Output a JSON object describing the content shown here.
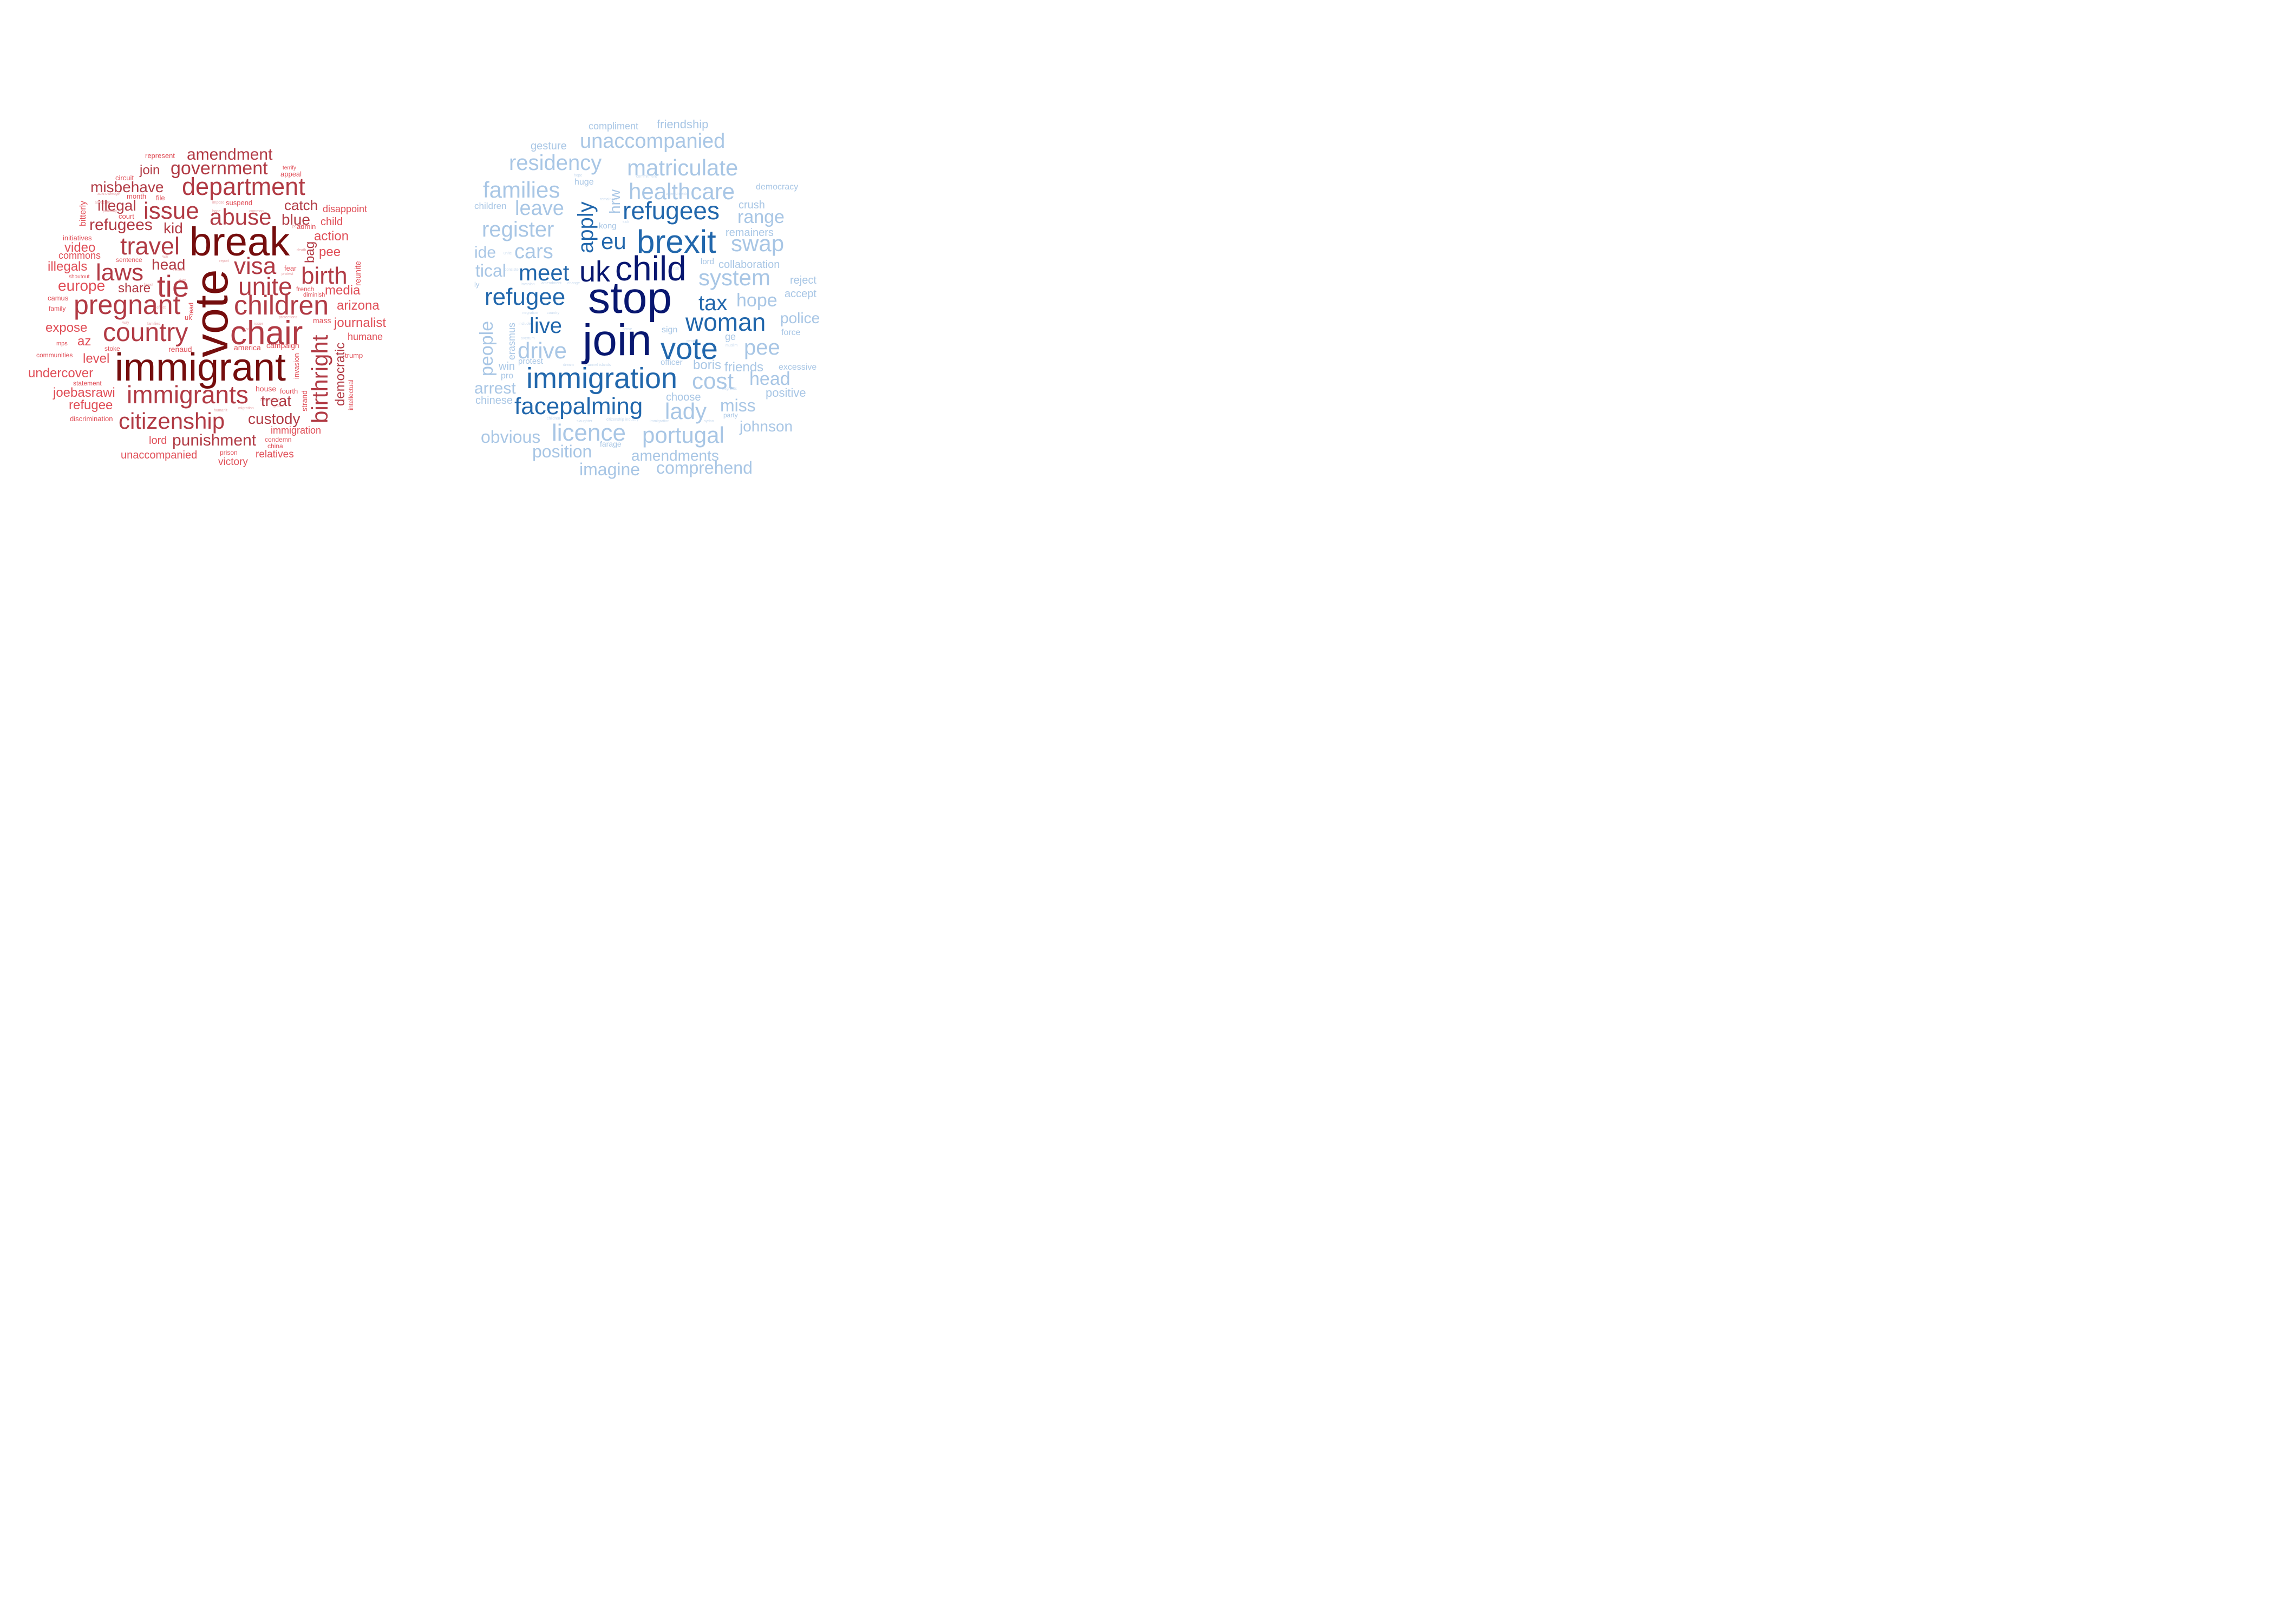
{
  "colors": {
    "red_dark": "#750d0d",
    "red_mid": "#b13a44",
    "red_light": "#e04e57",
    "blue_dark": "#081770",
    "blue_mid": "#2167ac",
    "blue_light": "#a8c6e5"
  },
  "clouds": [
    {
      "name": "red-word-cloud",
      "words": [
        {
          "text": "immigrant",
          "tone": "dark"
        },
        {
          "text": "vote",
          "tone": "dark"
        },
        {
          "text": "break",
          "tone": "dark"
        },
        {
          "text": "chair",
          "tone": "mid"
        },
        {
          "text": "children",
          "tone": "mid"
        },
        {
          "text": "tie",
          "tone": "mid"
        },
        {
          "text": "pregnant",
          "tone": "mid"
        },
        {
          "text": "department",
          "tone": "mid"
        },
        {
          "text": "country",
          "tone": "mid"
        },
        {
          "text": "immigrants",
          "tone": "mid"
        },
        {
          "text": "citizenship",
          "tone": "mid"
        },
        {
          "text": "unite",
          "tone": "mid"
        },
        {
          "text": "visa",
          "tone": "mid"
        },
        {
          "text": "abuse",
          "tone": "mid"
        },
        {
          "text": "travel",
          "tone": "mid"
        },
        {
          "text": "birth",
          "tone": "mid"
        },
        {
          "text": "birthright",
          "tone": "mid"
        },
        {
          "text": "laws",
          "tone": "mid"
        },
        {
          "text": "issue",
          "tone": "mid"
        },
        {
          "text": "government",
          "tone": "mid"
        },
        {
          "text": "amendment",
          "tone": "mid"
        },
        {
          "text": "custody",
          "tone": "mid"
        },
        {
          "text": "treat",
          "tone": "mid"
        },
        {
          "text": "punishment",
          "tone": "mid"
        },
        {
          "text": "refugees",
          "tone": "mid"
        },
        {
          "text": "misbehave",
          "tone": "mid"
        },
        {
          "text": "head",
          "tone": "mid"
        },
        {
          "text": "blue",
          "tone": "mid"
        },
        {
          "text": "illegal",
          "tone": "mid"
        },
        {
          "text": "kid",
          "tone": "mid"
        },
        {
          "text": "share",
          "tone": "mid"
        },
        {
          "text": "catch",
          "tone": "mid"
        },
        {
          "text": "join",
          "tone": "mid"
        },
        {
          "text": "bag",
          "tone": "mid"
        },
        {
          "text": "democratic",
          "tone": "mid"
        },
        {
          "text": "europe",
          "tone": "light"
        },
        {
          "text": "illegals",
          "tone": "light"
        },
        {
          "text": "video",
          "tone": "light"
        },
        {
          "text": "commons",
          "tone": "light"
        },
        {
          "text": "expose",
          "tone": "light"
        },
        {
          "text": "az",
          "tone": "light"
        },
        {
          "text": "level",
          "tone": "light"
        },
        {
          "text": "undercover",
          "tone": "light"
        },
        {
          "text": "joebasrawi",
          "tone": "light"
        },
        {
          "text": "refugee",
          "tone": "light"
        },
        {
          "text": "lord",
          "tone": "light"
        },
        {
          "text": "unaccompanied",
          "tone": "light"
        },
        {
          "text": "victory",
          "tone": "light"
        },
        {
          "text": "relatives",
          "tone": "light"
        },
        {
          "text": "immigration",
          "tone": "light"
        },
        {
          "text": "arizona",
          "tone": "light"
        },
        {
          "text": "journalist",
          "tone": "light"
        },
        {
          "text": "humane",
          "tone": "light"
        },
        {
          "text": "media",
          "tone": "light"
        },
        {
          "text": "pee",
          "tone": "light"
        },
        {
          "text": "action",
          "tone": "light"
        },
        {
          "text": "child",
          "tone": "light"
        },
        {
          "text": "disappoint",
          "tone": "light"
        },
        {
          "text": "reunite",
          "tone": "light"
        },
        {
          "text": "trump",
          "tone": "light"
        },
        {
          "text": "intellectual",
          "tone": "light"
        },
        {
          "text": "bitterly",
          "tone": "light"
        },
        {
          "text": "initiatives",
          "tone": "light"
        },
        {
          "text": "camus",
          "tone": "light"
        },
        {
          "text": "family",
          "tone": "light"
        },
        {
          "text": "mps",
          "tone": "light"
        },
        {
          "text": "communities",
          "tone": "light"
        },
        {
          "text": "statement",
          "tone": "light"
        },
        {
          "text": "discrimination",
          "tone": "light"
        },
        {
          "text": "shoutout",
          "tone": "light"
        },
        {
          "text": "represent",
          "tone": "light"
        },
        {
          "text": "circuit",
          "tone": "light"
        },
        {
          "text": "month",
          "tone": "light"
        },
        {
          "text": "court",
          "tone": "light"
        },
        {
          "text": "file",
          "tone": "light"
        },
        {
          "text": "suspend",
          "tone": "light"
        },
        {
          "text": "terrify",
          "tone": "light"
        },
        {
          "text": "appeal",
          "tone": "light"
        },
        {
          "text": "admin",
          "tone": "light"
        },
        {
          "text": "fear",
          "tone": "light"
        },
        {
          "text": "french",
          "tone": "light"
        },
        {
          "text": "mass",
          "tone": "light"
        },
        {
          "text": "house",
          "tone": "light"
        },
        {
          "text": "fourth",
          "tone": "light"
        },
        {
          "text": "strand",
          "tone": "light"
        },
        {
          "text": "invasion",
          "tone": "light"
        },
        {
          "text": "campaign",
          "tone": "light"
        },
        {
          "text": "america",
          "tone": "light"
        },
        {
          "text": "stoke",
          "tone": "light"
        },
        {
          "text": "renaud",
          "tone": "light"
        },
        {
          "text": "read",
          "tone": "light"
        },
        {
          "text": "uk",
          "tone": "light"
        },
        {
          "text": "sentence",
          "tone": "light"
        },
        {
          "text": "condemn",
          "tone": "light"
        },
        {
          "text": "china",
          "tone": "light"
        },
        {
          "text": "prison",
          "tone": "light"
        },
        {
          "text": "diminish",
          "tone": "light"
        }
      ]
    },
    {
      "name": "blue-word-cloud",
      "words": [
        {
          "text": "stop",
          "tone": "dark"
        },
        {
          "text": "join",
          "tone": "dark"
        },
        {
          "text": "child",
          "tone": "dark"
        },
        {
          "text": "uk",
          "tone": "dark"
        },
        {
          "text": "brexit",
          "tone": "mid"
        },
        {
          "text": "immigration",
          "tone": "mid"
        },
        {
          "text": "vote",
          "tone": "mid"
        },
        {
          "text": "refugees",
          "tone": "mid"
        },
        {
          "text": "facepalming",
          "tone": "mid"
        },
        {
          "text": "refugee",
          "tone": "mid"
        },
        {
          "text": "woman",
          "tone": "mid"
        },
        {
          "text": "meet",
          "tone": "mid"
        },
        {
          "text": "eu",
          "tone": "mid"
        },
        {
          "text": "tax",
          "tone": "mid"
        },
        {
          "text": "live",
          "tone": "mid"
        },
        {
          "text": "apply",
          "tone": "mid"
        },
        {
          "text": "matriculate",
          "tone": "light"
        },
        {
          "text": "healthcare",
          "tone": "light"
        },
        {
          "text": "residency",
          "tone": "light"
        },
        {
          "text": "unaccompanied",
          "tone": "light"
        },
        {
          "text": "families",
          "tone": "light"
        },
        {
          "text": "register",
          "tone": "light"
        },
        {
          "text": "portugal",
          "tone": "light"
        },
        {
          "text": "licence",
          "tone": "light"
        },
        {
          "text": "system",
          "tone": "light"
        },
        {
          "text": "swap",
          "tone": "light"
        },
        {
          "text": "drive",
          "tone": "light"
        },
        {
          "text": "cars",
          "tone": "light"
        },
        {
          "text": "leave",
          "tone": "light"
        },
        {
          "text": "cost",
          "tone": "light"
        },
        {
          "text": "lady",
          "tone": "light"
        },
        {
          "text": "pee",
          "tone": "light"
        },
        {
          "text": "comprehend",
          "tone": "light"
        },
        {
          "text": "imagine",
          "tone": "light"
        },
        {
          "text": "position",
          "tone": "light"
        },
        {
          "text": "obvious",
          "tone": "light"
        },
        {
          "text": "arrest",
          "tone": "light"
        },
        {
          "text": "people",
          "tone": "light"
        },
        {
          "text": "tical",
          "tone": "light"
        },
        {
          "text": "ide",
          "tone": "light"
        },
        {
          "text": "head",
          "tone": "light"
        },
        {
          "text": "hope",
          "tone": "light"
        },
        {
          "text": "range",
          "tone": "light"
        },
        {
          "text": "miss",
          "tone": "light"
        },
        {
          "text": "hrw",
          "tone": "light"
        },
        {
          "text": "amendments",
          "tone": "light"
        },
        {
          "text": "johnson",
          "tone": "light"
        },
        {
          "text": "police",
          "tone": "light"
        },
        {
          "text": "boris",
          "tone": "light"
        },
        {
          "text": "friends",
          "tone": "light"
        },
        {
          "text": "erasmus",
          "tone": "light"
        },
        {
          "text": "chinese",
          "tone": "light"
        },
        {
          "text": "gesture",
          "tone": "light"
        },
        {
          "text": "compliment",
          "tone": "light"
        },
        {
          "text": "friendship",
          "tone": "light"
        },
        {
          "text": "democracy",
          "tone": "light"
        },
        {
          "text": "children",
          "tone": "light"
        },
        {
          "text": "crush",
          "tone": "light"
        },
        {
          "text": "remainers",
          "tone": "light"
        },
        {
          "text": "collaboration",
          "tone": "light"
        },
        {
          "text": "reject",
          "tone": "light"
        },
        {
          "text": "accept",
          "tone": "light"
        },
        {
          "text": "force",
          "tone": "light"
        },
        {
          "text": "excessive",
          "tone": "light"
        },
        {
          "text": "positive",
          "tone": "light"
        },
        {
          "text": "choose",
          "tone": "light"
        },
        {
          "text": "huge",
          "tone": "light"
        },
        {
          "text": "win",
          "tone": "light"
        },
        {
          "text": "pro",
          "tone": "light"
        },
        {
          "text": "protest",
          "tone": "light"
        },
        {
          "text": "officer",
          "tone": "light"
        },
        {
          "text": "sign",
          "tone": "light"
        },
        {
          "text": "lord",
          "tone": "light"
        },
        {
          "text": "farage",
          "tone": "light"
        },
        {
          "text": "party",
          "tone": "light"
        },
        {
          "text": "kong",
          "tone": "light"
        },
        {
          "text": "ly",
          "tone": "light"
        },
        {
          "text": "ge",
          "tone": "light"
        }
      ]
    }
  ]
}
